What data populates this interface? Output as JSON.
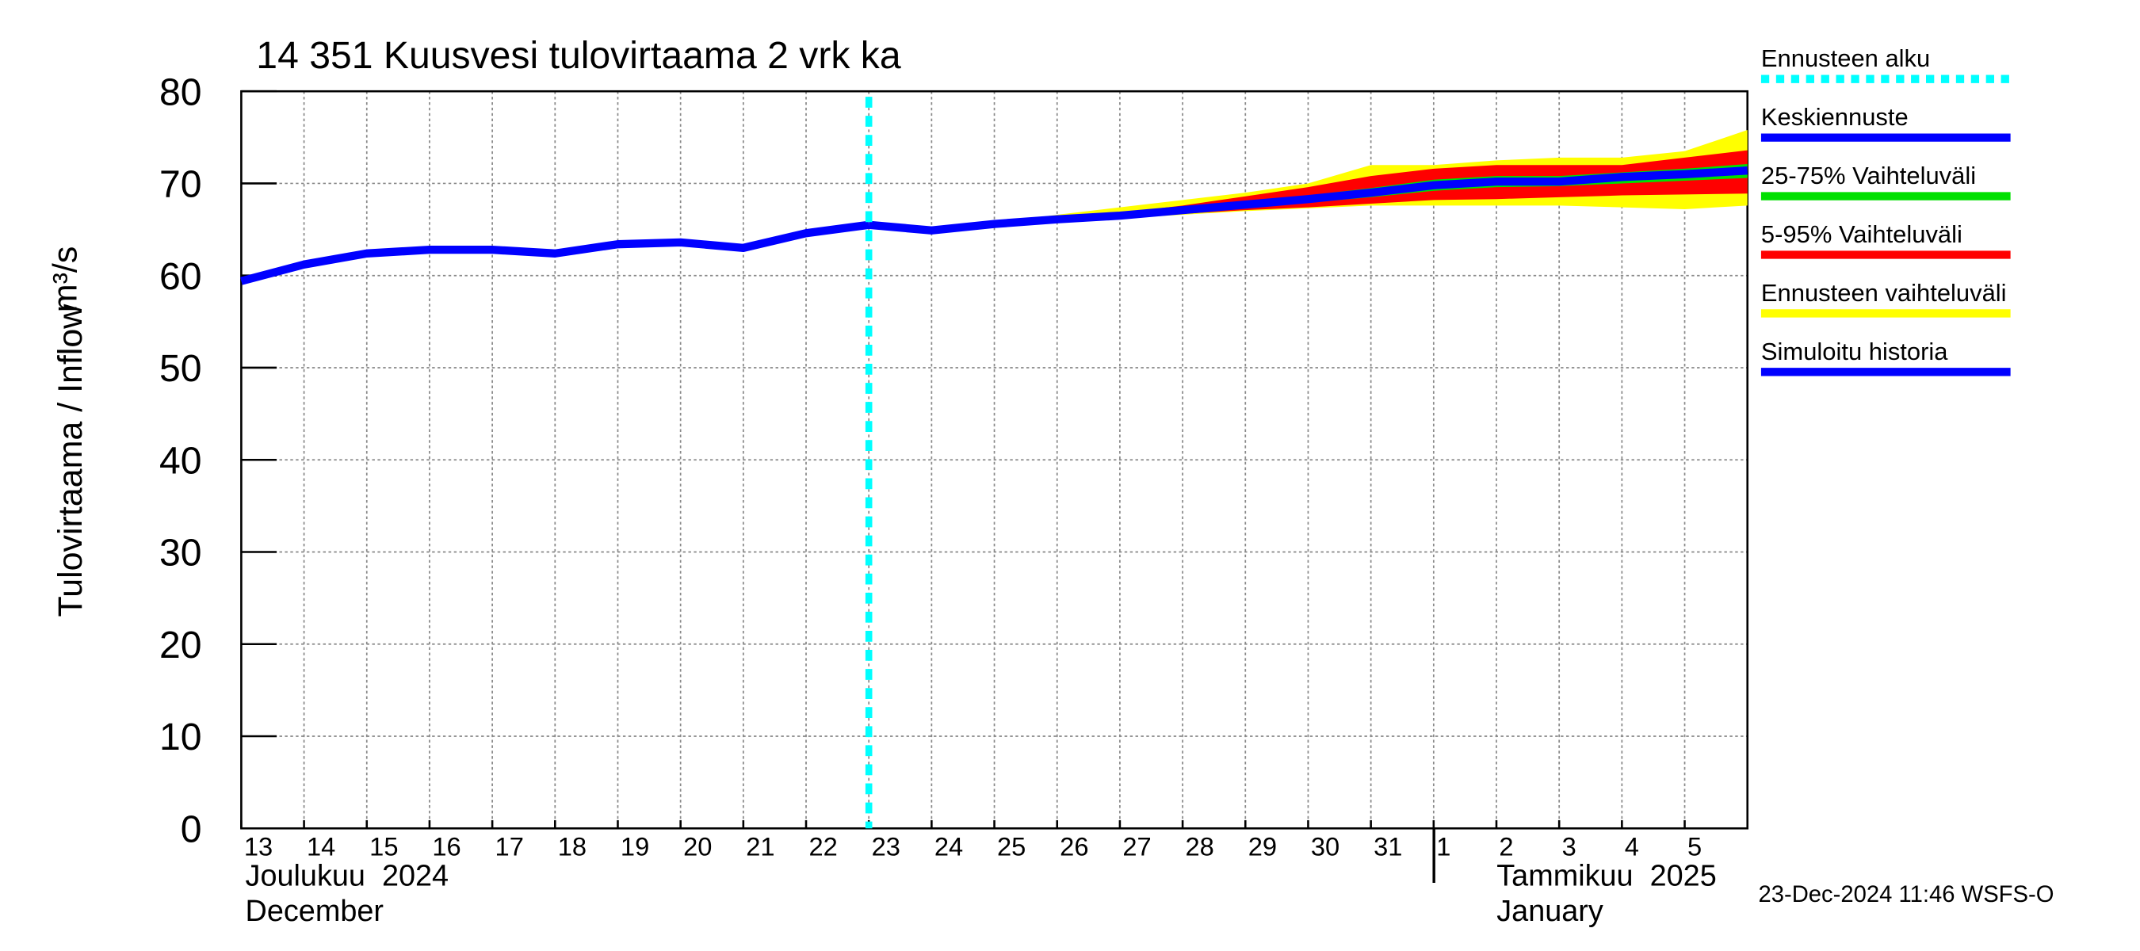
{
  "chart_data": {
    "type": "line",
    "title": "14 351 Kuusvesi tulovirtaama 2 vrk ka",
    "y_label": "Tulovirtaama / Inflow",
    "y_unit": "m³/s",
    "month_labels": [
      "Joulukuu  2024",
      "December",
      "Tammikuu  2025",
      "January"
    ],
    "timestamp": "23-Dec-2024 11:46 WSFS-O",
    "ylim": [
      0,
      80
    ],
    "yticks": [
      0,
      10,
      20,
      30,
      40,
      50,
      60,
      70,
      80
    ],
    "grid": true,
    "xlim": [
      "2024-12-13",
      "2025-01-06"
    ],
    "xticks": [
      {
        "value": "2024-12-13",
        "label": "13"
      },
      {
        "value": "2024-12-14",
        "label": "14"
      },
      {
        "value": "2024-12-15",
        "label": "15"
      },
      {
        "value": "2024-12-16",
        "label": "16"
      },
      {
        "value": "2024-12-17",
        "label": "17"
      },
      {
        "value": "2024-12-18",
        "label": "18"
      },
      {
        "value": "2024-12-19",
        "label": "19"
      },
      {
        "value": "2024-12-20",
        "label": "20"
      },
      {
        "value": "2024-12-21",
        "label": "21"
      },
      {
        "value": "2024-12-22",
        "label": "22"
      },
      {
        "value": "2024-12-23",
        "label": "23"
      },
      {
        "value": "2024-12-24",
        "label": "24"
      },
      {
        "value": "2024-12-25",
        "label": "25"
      },
      {
        "value": "2024-12-26",
        "label": "26"
      },
      {
        "value": "2024-12-27",
        "label": "27"
      },
      {
        "value": "2024-12-28",
        "label": "28"
      },
      {
        "value": "2024-12-29",
        "label": "29"
      },
      {
        "value": "2024-12-30",
        "label": "30"
      },
      {
        "value": "2024-12-31",
        "label": "31"
      },
      {
        "value": "2025-01-01",
        "label": "1"
      },
      {
        "value": "2025-01-02",
        "label": "2"
      },
      {
        "value": "2025-01-03",
        "label": "3"
      },
      {
        "value": "2025-01-04",
        "label": "4"
      },
      {
        "value": "2025-01-05",
        "label": "5"
      }
    ],
    "forecast_start": {
      "name": "Ennusteen alku",
      "color": "#00ffff",
      "x": "2024-12-23"
    },
    "series": [
      {
        "name": "Keskiennuste",
        "color": "#0000ff",
        "kind": "line",
        "x": [
          "2024-12-23",
          "2024-12-24",
          "2024-12-25",
          "2024-12-26",
          "2024-12-27",
          "2024-12-28",
          "2024-12-29",
          "2024-12-30",
          "2024-12-31",
          "2025-01-01",
          "2025-01-02",
          "2025-01-03",
          "2025-01-04",
          "2025-01-05",
          "2025-01-06"
        ],
        "values": [
          65.5,
          64.9,
          65.6,
          66.1,
          66.5,
          67.1,
          67.7,
          68.3,
          69.0,
          69.8,
          70.2,
          70.2,
          70.7,
          71.0,
          71.4
        ]
      },
      {
        "name": "25-75% Vaihteluväli",
        "color": "#00e000",
        "kind": "band",
        "x": [
          "2024-12-25",
          "2024-12-26",
          "2024-12-27",
          "2024-12-28",
          "2024-12-29",
          "2024-12-30",
          "2024-12-31",
          "2025-01-01",
          "2025-01-02",
          "2025-01-03",
          "2025-01-04",
          "2025-01-05",
          "2025-01-06"
        ],
        "low": [
          65.5,
          66.0,
          66.4,
          66.9,
          67.4,
          67.9,
          68.5,
          69.2,
          69.6,
          69.7,
          70.0,
          70.3,
          70.6
        ],
        "high": [
          65.6,
          66.1,
          66.6,
          67.2,
          67.9,
          68.7,
          69.5,
          70.4,
          70.8,
          70.8,
          71.2,
          71.6,
          72.1
        ]
      },
      {
        "name": "5-95% Vaihteluväli",
        "color": "#ff0000",
        "kind": "band",
        "x": [
          "2024-12-25",
          "2024-12-26",
          "2024-12-27",
          "2024-12-28",
          "2024-12-29",
          "2024-12-30",
          "2024-12-31",
          "2025-01-01",
          "2025-01-02",
          "2025-01-03",
          "2025-01-04",
          "2025-01-05",
          "2025-01-06"
        ],
        "low": [
          65.5,
          65.9,
          66.3,
          66.7,
          67.1,
          67.4,
          67.8,
          68.2,
          68.3,
          68.5,
          68.7,
          68.8,
          68.9
        ],
        "high": [
          65.6,
          66.2,
          66.8,
          67.6,
          68.6,
          69.6,
          70.8,
          71.6,
          72.0,
          72.0,
          72.0,
          72.8,
          73.6
        ]
      },
      {
        "name": "Ennusteen vaihteluväli",
        "color": "#ffff00",
        "kind": "band",
        "x": [
          "2024-12-25",
          "2024-12-26",
          "2024-12-27",
          "2024-12-28",
          "2024-12-29",
          "2024-12-30",
          "2024-12-31",
          "2025-01-01",
          "2025-01-02",
          "2025-01-03",
          "2025-01-04",
          "2025-01-05",
          "2025-01-06"
        ],
        "low": [
          65.5,
          65.9,
          66.2,
          66.6,
          67.0,
          67.3,
          67.6,
          67.6,
          67.6,
          67.6,
          67.4,
          67.2,
          67.6
        ],
        "high": [
          65.7,
          66.6,
          67.4,
          68.2,
          69.0,
          70.0,
          72.0,
          72.0,
          72.5,
          72.8,
          72.8,
          73.5,
          75.8
        ]
      },
      {
        "name": "Simuloitu historia",
        "color": "#0000ff",
        "kind": "line",
        "x": [
          "2024-12-13",
          "2024-12-14",
          "2024-12-15",
          "2024-12-16",
          "2024-12-17",
          "2024-12-18",
          "2024-12-19",
          "2024-12-20",
          "2024-12-21",
          "2024-12-22",
          "2024-12-23"
        ],
        "values": [
          59.4,
          61.2,
          62.4,
          62.8,
          62.8,
          62.4,
          63.4,
          63.6,
          63.0,
          64.6,
          65.5
        ]
      }
    ]
  }
}
